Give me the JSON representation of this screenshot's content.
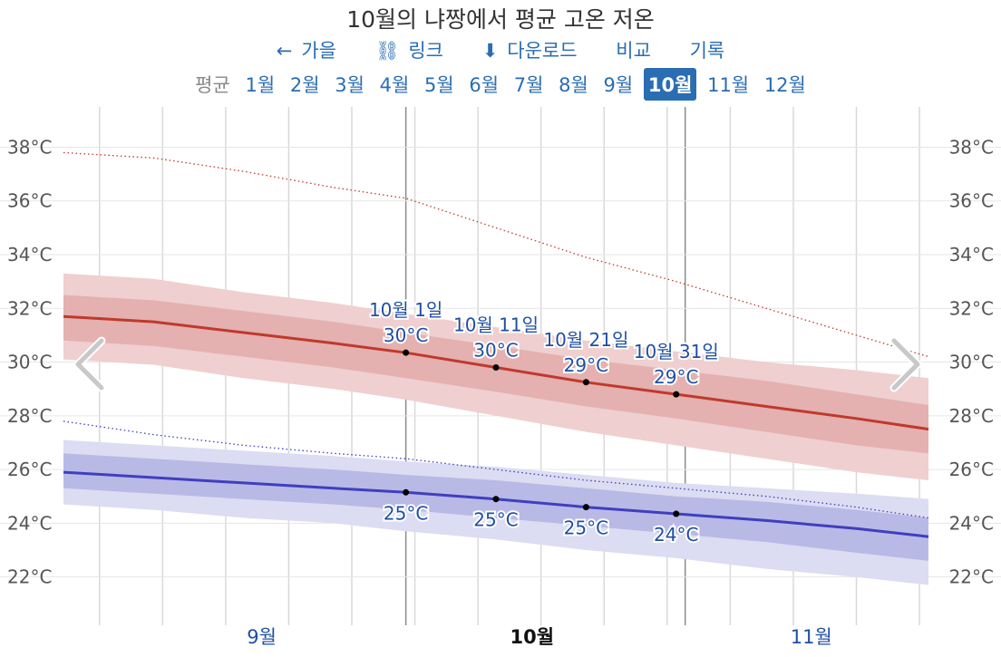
{
  "header": {
    "title": "10월의 냐짱에서 평균 고온 저온",
    "nav": [
      {
        "icon": "←",
        "icon_name": "arrow-left-icon",
        "label": "가을"
      },
      {
        "icon": "⛓",
        "icon_name": "link-icon",
        "label": "링크"
      },
      {
        "icon": "⬇",
        "icon_name": "download-icon",
        "label": "다운로드"
      },
      {
        "icon": "",
        "icon_name": "",
        "label": "비교"
      },
      {
        "icon": "",
        "icon_name": "",
        "label": "기록"
      }
    ],
    "months_label": "평균",
    "months": [
      "1월",
      "2월",
      "3월",
      "4월",
      "5월",
      "6월",
      "7월",
      "8월",
      "9월",
      "10월",
      "11월",
      "12월"
    ],
    "active_month": "10월"
  },
  "colors": {
    "high": "#c0392b",
    "low": "#3f3fbf",
    "accent": "#2a6db3"
  },
  "chart_data": {
    "type": "area",
    "title": "",
    "y_ticks": [
      "22°C",
      "24°C",
      "26°C",
      "28°C",
      "30°C",
      "32°C",
      "34°C",
      "36°C",
      "38°C"
    ],
    "y_values": [
      22,
      24,
      26,
      28,
      30,
      32,
      34,
      36,
      38
    ],
    "ylim": [
      20.2,
      39.5
    ],
    "x_start": "2021-08-24",
    "x_end": "2021-11-28",
    "x_labels": [
      {
        "label": "9월",
        "date": "2021-09-15",
        "bold": false
      },
      {
        "label": "10월",
        "date": "2021-10-15",
        "bold": true
      },
      {
        "label": "11월",
        "date": "2021-11-15",
        "bold": false
      }
    ],
    "highlight_dates": [
      "2021-10-01",
      "2021-11-01"
    ],
    "series": [
      {
        "name": "평균 고온",
        "dates": [
          "2021-08-24",
          "2021-09-03",
          "2021-09-13",
          "2021-09-23",
          "2021-10-01",
          "2021-10-11",
          "2021-10-21",
          "2021-10-31",
          "2021-11-10",
          "2021-11-20",
          "2021-11-28"
        ],
        "mean": [
          31.7,
          31.5,
          31.1,
          30.7,
          30.35,
          29.8,
          29.25,
          28.8,
          28.35,
          27.9,
          27.5
        ],
        "band_inner": [
          [
            30.8,
            32.5
          ],
          [
            30.6,
            32.3
          ],
          [
            30.2,
            31.9
          ],
          [
            29.8,
            31.5
          ],
          [
            29.4,
            31.1
          ],
          [
            28.9,
            30.6
          ],
          [
            28.35,
            30.1
          ],
          [
            27.9,
            29.7
          ],
          [
            27.4,
            29.3
          ],
          [
            26.9,
            28.8
          ],
          [
            26.6,
            28.4
          ]
        ],
        "band_outer": [
          [
            30.1,
            33.3
          ],
          [
            29.9,
            33.1
          ],
          [
            29.4,
            32.6
          ],
          [
            29.0,
            32.2
          ],
          [
            28.6,
            31.8
          ],
          [
            28.0,
            31.3
          ],
          [
            27.4,
            30.8
          ],
          [
            26.9,
            30.4
          ],
          [
            26.4,
            30.0
          ],
          [
            25.9,
            29.7
          ],
          [
            25.6,
            29.4
          ]
        ],
        "record": [
          37.8,
          37.6,
          37.1,
          36.5,
          36.1,
          35.0,
          33.9,
          33.0,
          32.0,
          31.0,
          30.2
        ]
      },
      {
        "name": "평균 저온",
        "dates": [
          "2021-08-24",
          "2021-09-03",
          "2021-09-13",
          "2021-09-23",
          "2021-10-01",
          "2021-10-11",
          "2021-10-21",
          "2021-10-31",
          "2021-11-10",
          "2021-11-20",
          "2021-11-28"
        ],
        "mean": [
          25.9,
          25.7,
          25.5,
          25.3,
          25.15,
          24.9,
          24.6,
          24.35,
          24.1,
          23.8,
          23.5
        ],
        "band_inner": [
          [
            25.3,
            26.6
          ],
          [
            25.1,
            26.4
          ],
          [
            24.9,
            26.2
          ],
          [
            24.7,
            26.0
          ],
          [
            24.5,
            25.8
          ],
          [
            24.2,
            25.6
          ],
          [
            23.9,
            25.3
          ],
          [
            23.6,
            25.0
          ],
          [
            23.3,
            24.8
          ],
          [
            22.9,
            24.5
          ],
          [
            22.6,
            24.2
          ]
        ],
        "band_outer": [
          [
            24.7,
            27.1
          ],
          [
            24.5,
            26.9
          ],
          [
            24.2,
            26.7
          ],
          [
            24.0,
            26.5
          ],
          [
            23.7,
            26.3
          ],
          [
            23.4,
            26.1
          ],
          [
            23.0,
            25.8
          ],
          [
            22.7,
            25.5
          ],
          [
            22.3,
            25.3
          ],
          [
            22.0,
            25.1
          ],
          [
            21.7,
            24.9
          ]
        ],
        "record": [
          27.8,
          27.3,
          26.9,
          26.6,
          26.4,
          26.0,
          25.6,
          25.3,
          25.0,
          24.6,
          24.2
        ]
      }
    ],
    "annotations": [
      {
        "date_label": "10월 1일",
        "date": "2021-10-01",
        "high": 30.35,
        "high_label": "30°C",
        "low": 25.15,
        "low_label": "25°C"
      },
      {
        "date_label": "10월 11일",
        "date": "2021-10-11",
        "high": 29.8,
        "high_label": "30°C",
        "low": 24.9,
        "low_label": "25°C"
      },
      {
        "date_label": "10월 21일",
        "date": "2021-10-21",
        "high": 29.25,
        "high_label": "29°C",
        "low": 24.6,
        "low_label": "25°C"
      },
      {
        "date_label": "10월 31일",
        "date": "2021-10-31",
        "high": 28.8,
        "high_label": "29°C",
        "low": 24.35,
        "low_label": "24°C"
      }
    ]
  }
}
